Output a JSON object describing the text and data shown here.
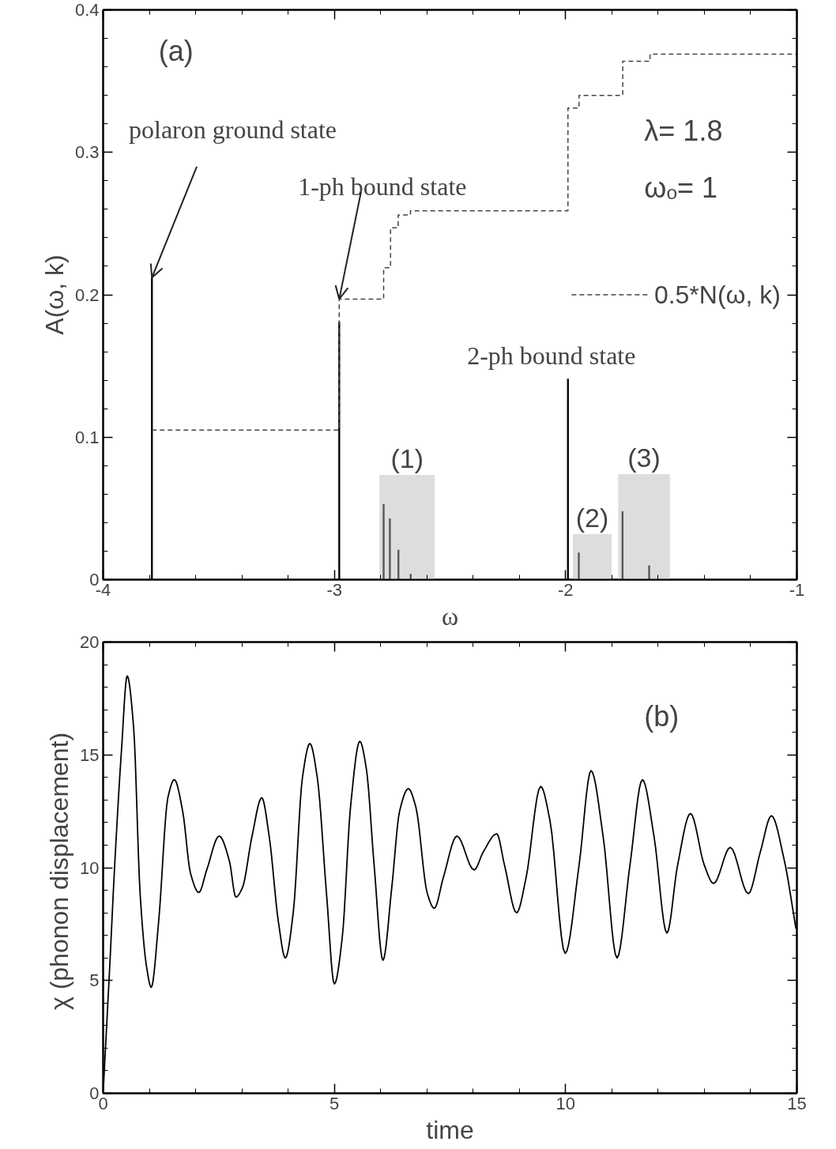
{
  "chart_data": [
    {
      "type": "bar",
      "xlabel": "ω",
      "ylabel": "A(ω, k)",
      "xlim": [
        -4,
        -1
      ],
      "xticks": [
        -4,
        -3,
        -2,
        -1
      ],
      "ylim": [
        0,
        0.4
      ],
      "yticks": [
        0,
        0.1,
        0.2,
        0.3,
        0.4
      ],
      "grid": false,
      "legend": "right",
      "series": [
        {
          "type": "bar",
          "x": [
            -2.6855,
            -1.885,
            -1.661
          ],
          "values": [
            0.0735,
            0.032,
            0.074
          ],
          "color": "#dcdddf"
        },
        {
          "type": "bar",
          "x": [
            -3.789,
            -2.979,
            -1.99
          ],
          "values": [
            0.212,
            0.181,
            0.141
          ],
          "color": "#000000"
        },
        {
          "type": "bar",
          "x": [
            -2.787,
            -2.76,
            -2.723,
            -2.67,
            -1.943,
            -1.754,
            -1.639
          ],
          "values": [
            0.053,
            0.043,
            0.021,
            0.004,
            0.019,
            0.048,
            0.01
          ],
          "color": "#555555"
        },
        {
          "type": "step",
          "name": "0.5*N(ω, k)",
          "color": "#444444",
          "line_style": "dashed",
          "x": [
            -3.789,
            -2.979,
            -2.787,
            -2.757,
            -2.724,
            -2.671,
            -1.99,
            -1.942,
            -1.753,
            -1.635,
            -1.0
          ],
          "values": [
            0.105,
            0.197,
            0.219,
            0.247,
            0.256,
            0.259,
            0.331,
            0.34,
            0.364,
            0.369,
            0.369
          ]
        }
      ],
      "annotations": [
        "(a)",
        "λ= 1.8",
        "ωₒ= 1",
        {
          "text": "polaron ground state",
          "x": -3.789,
          "y": 0.212
        },
        {
          "text": "1-ph bound state",
          "x": -2.979,
          "y": 0.197
        },
        {
          "text": "2-ph bound state",
          "x": -1.99,
          "y": 0.141
        },
        {
          "text": "(1)",
          "x": -2.6855,
          "y": 0.0735
        },
        {
          "text": "(2)",
          "x": -1.885,
          "y": 0.032
        },
        {
          "text": "(3)",
          "x": -1.661,
          "y": 0.074
        }
      ]
    },
    {
      "type": "line",
      "xlabel": "time",
      "ylabel": "χ  (phonon displacement)",
      "xlim": [
        0,
        15
      ],
      "xticks": [
        0,
        5,
        10,
        15
      ],
      "ylim": [
        0,
        20
      ],
      "yticks": [
        0,
        5,
        10,
        15,
        20
      ],
      "grid": false,
      "series": [
        {
          "color": "#000000",
          "x": [
            0,
            0.14,
            0.25,
            0.4,
            0.52,
            0.66,
            0.8,
            0.94,
            1.04,
            1.2,
            1.4,
            1.54,
            1.72,
            1.89,
            2.07,
            2.24,
            2.51,
            2.73,
            2.87,
            3.01,
            3.22,
            3.43,
            3.59,
            3.79,
            3.94,
            4.11,
            4.31,
            4.47,
            4.63,
            4.83,
            5.0,
            5.17,
            5.35,
            5.55,
            5.69,
            5.86,
            6.05,
            6.24,
            6.41,
            6.6,
            6.76,
            7.01,
            7.16,
            7.36,
            7.65,
            8.02,
            8.22,
            8.51,
            8.68,
            8.94,
            9.14,
            9.46,
            9.66,
            9.99,
            10.29,
            10.55,
            10.81,
            11.11,
            11.39,
            11.66,
            11.91,
            12.19,
            12.42,
            12.7,
            13.0,
            13.2,
            13.56,
            13.95,
            14.21,
            14.45,
            14.72,
            14.98
          ],
          "values": [
            0,
            5.5,
            10.1,
            15.3,
            18.5,
            16.2,
            8.85,
            5.6,
            4.7,
            7.6,
            13.1,
            13.9,
            12.5,
            9.75,
            8.9,
            9.9,
            11.4,
            10.3,
            8.7,
            9.1,
            11.4,
            13.1,
            11.4,
            7.6,
            6.0,
            8.0,
            14.0,
            15.5,
            14.0,
            8.85,
            4.85,
            6.9,
            12.7,
            15.6,
            14.4,
            10.1,
            5.9,
            9.1,
            12.5,
            13.5,
            12.7,
            8.85,
            8.2,
            9.6,
            11.4,
            9.9,
            10.7,
            11.5,
            10.1,
            8.0,
            9.5,
            13.6,
            12.1,
            6.2,
            10.1,
            14.3,
            11.4,
            6.0,
            10.1,
            13.9,
            11.4,
            7.1,
            10.1,
            12.4,
            10.1,
            9.3,
            10.9,
            8.85,
            10.7,
            12.3,
            10.4,
            7.3
          ]
        }
      ],
      "annotations": [
        "(b)"
      ]
    }
  ]
}
